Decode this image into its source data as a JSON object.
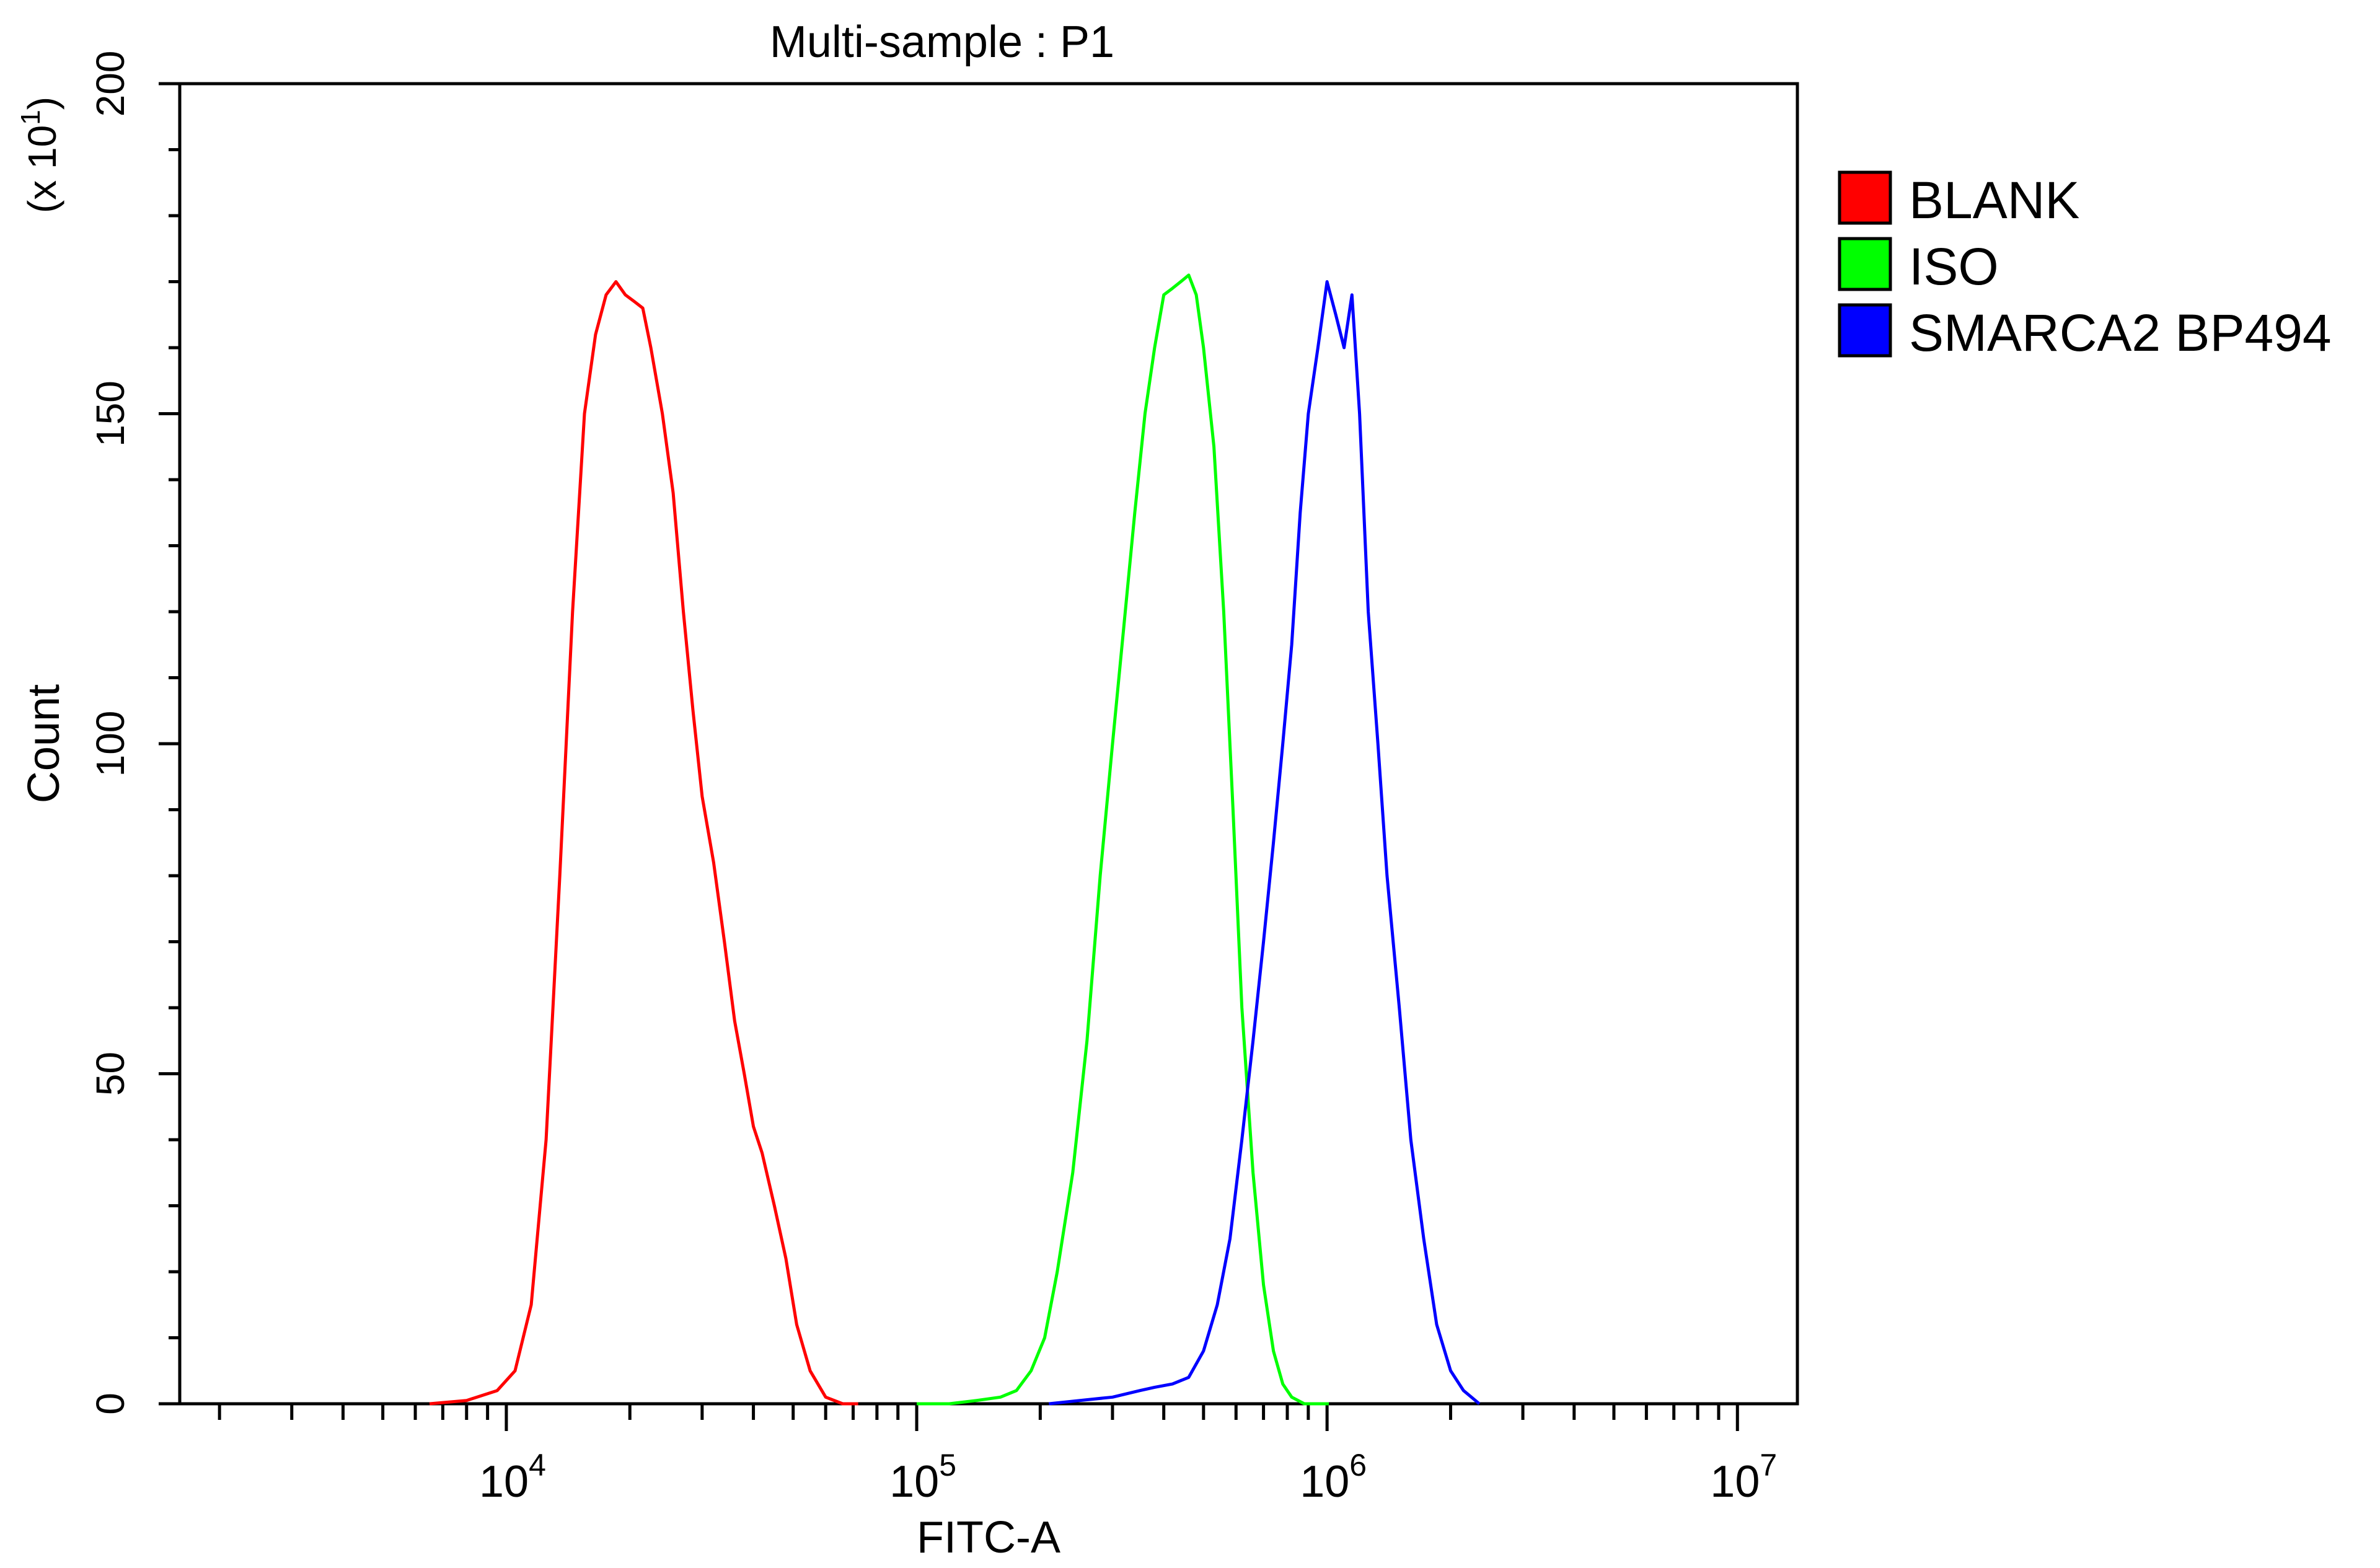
{
  "chart_data": {
    "type": "line",
    "title": "Multi-sample : P1",
    "xlabel": "FITC-A",
    "ylabel": "Count",
    "y_multiplier_label": "(x 10",
    "y_multiplier_exp": "1",
    "y_multiplier_close": ")",
    "x_scale": "log",
    "xlim": [
      1600,
      14000000
    ],
    "ylim": [
      0,
      200
    ],
    "x_major_ticks": [
      {
        "value": 10000,
        "base": "10",
        "exp": "4"
      },
      {
        "value": 100000,
        "base": "10",
        "exp": "5"
      },
      {
        "value": 1000000,
        "base": "10",
        "exp": "6"
      },
      {
        "value": 10000000,
        "base": "10",
        "exp": "7"
      }
    ],
    "y_ticks": [
      0,
      50,
      100,
      150,
      200
    ],
    "y_minor_step": 10,
    "legend_position": "right",
    "series": [
      {
        "name": "BLANK",
        "color": "#ff0000",
        "x": [
          6500,
          8000,
          9500,
          10500,
          11500,
          12500,
          13500,
          14500,
          15500,
          16500,
          17500,
          18500,
          19500,
          20500,
          21500,
          22500,
          24000,
          25500,
          27000,
          28500,
          30000,
          32000,
          34000,
          36000,
          38000,
          40000,
          42000,
          45000,
          48000,
          51000,
          55000,
          60000,
          66000,
          72000
        ],
        "y": [
          0,
          0.5,
          2,
          5,
          15,
          40,
          80,
          120,
          150,
          162,
          168,
          170,
          168,
          167,
          166,
          160,
          150,
          138,
          120,
          105,
          92,
          82,
          70,
          58,
          50,
          42,
          38,
          30,
          22,
          12,
          5,
          1,
          0,
          0
        ]
      },
      {
        "name": "ISO",
        "color": "#00ff00",
        "x": [
          100000,
          120000,
          140000,
          160000,
          175000,
          190000,
          205000,
          220000,
          240000,
          260000,
          280000,
          300000,
          320000,
          340000,
          360000,
          380000,
          400000,
          420000,
          440000,
          460000,
          480000,
          500000,
          530000,
          560000,
          590000,
          620000,
          660000,
          700000,
          740000,
          780000,
          820000,
          880000,
          950000,
          1010000
        ],
        "y": [
          0,
          0,
          0.5,
          1,
          2,
          5,
          10,
          20,
          35,
          55,
          80,
          100,
          118,
          135,
          150,
          160,
          168,
          169,
          170,
          171,
          168,
          160,
          145,
          120,
          90,
          60,
          35,
          18,
          8,
          3,
          1,
          0,
          0,
          0
        ]
      },
      {
        "name": "SMARCA2 BP494",
        "color": "#0000ff",
        "x": [
          210000,
          250000,
          300000,
          350000,
          380000,
          420000,
          460000,
          500000,
          540000,
          580000,
          620000,
          660000,
          700000,
          740000,
          780000,
          820000,
          860000,
          900000,
          950000,
          1000000,
          1050000,
          1100000,
          1150000,
          1200000,
          1260000,
          1330000,
          1400000,
          1500000,
          1600000,
          1720000,
          1850000,
          2000000,
          2150000,
          2350000
        ],
        "y": [
          0,
          0.5,
          1,
          2,
          2.5,
          3,
          4,
          8,
          15,
          25,
          40,
          55,
          70,
          85,
          100,
          115,
          135,
          150,
          160,
          170,
          165,
          160,
          168,
          150,
          120,
          100,
          80,
          60,
          40,
          25,
          12,
          5,
          2,
          0
        ]
      }
    ]
  }
}
